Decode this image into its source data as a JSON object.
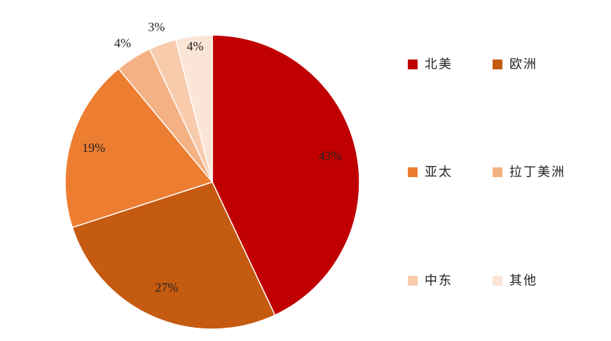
{
  "chart_data": {
    "type": "pie",
    "slices": [
      {
        "label": "北美",
        "value": 43,
        "display": "43%",
        "color": "#C00000"
      },
      {
        "label": "欧洲",
        "value": 27,
        "display": "27%",
        "color": "#C55A11"
      },
      {
        "label": "亚太",
        "value": 19,
        "display": "19%",
        "color": "#ED7D31"
      },
      {
        "label": "拉丁美洲",
        "value": 4,
        "display": "4%",
        "color": "#F4B183"
      },
      {
        "label": "中东",
        "value": 3,
        "display": "3%",
        "color": "#F8CBAD"
      },
      {
        "label": "其他",
        "value": 4,
        "display": "4%",
        "color": "#FBE5D6"
      }
    ],
    "start_angle": "12 o'clock",
    "direction": "clockwise",
    "legend_position": "right"
  }
}
